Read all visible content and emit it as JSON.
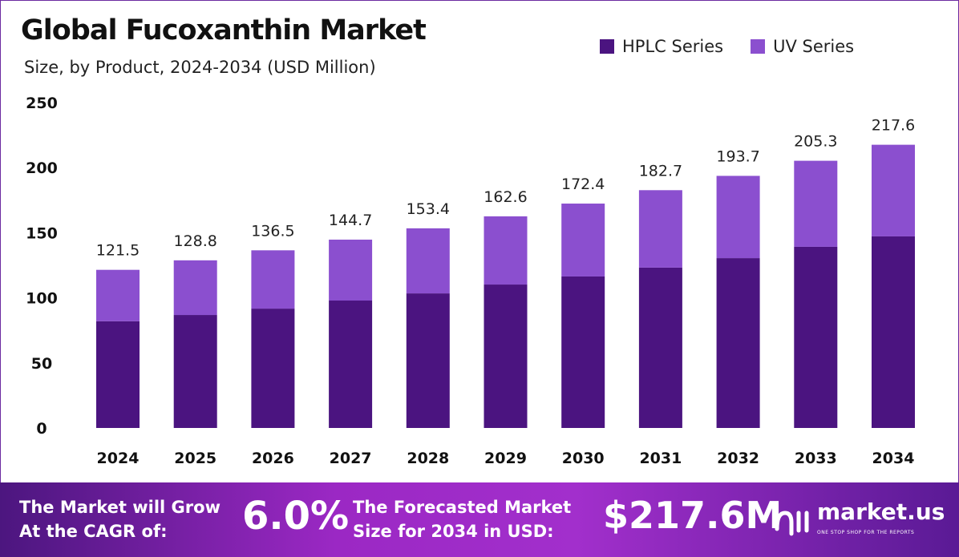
{
  "chart_data": {
    "type": "bar",
    "stacked": true,
    "title": "Global Fucoxanthin Market",
    "subtitle": "Size, by Product, 2024-2034 (USD Million)",
    "categories": [
      "2024",
      "2025",
      "2026",
      "2027",
      "2028",
      "2029",
      "2030",
      "2031",
      "2032",
      "2033",
      "2034"
    ],
    "series": [
      {
        "name": "HPLC Series",
        "color": "#4b1480",
        "values": [
          82.0,
          86.8,
          91.7,
          97.9,
          103.4,
          110.2,
          116.4,
          123.2,
          130.5,
          139.2,
          147.2
        ]
      },
      {
        "name": "UV Series",
        "color": "#8b4fcf",
        "values": [
          39.5,
          42.0,
          44.8,
          46.8,
          50.0,
          52.4,
          56.0,
          59.5,
          63.2,
          66.1,
          70.4
        ]
      }
    ],
    "totals": [
      "121.5",
      "128.8",
      "136.5",
      "144.7",
      "153.4",
      "162.6",
      "172.4",
      "182.7",
      "193.7",
      "205.3",
      "217.6"
    ],
    "ylim": [
      0,
      250
    ],
    "yticks": [
      "0",
      "50",
      "100",
      "150",
      "200",
      "250"
    ],
    "grid": false,
    "legend": "top-right"
  },
  "footer": {
    "cagr_text_1": "The Market will Grow",
    "cagr_text_2": "At the CAGR of:",
    "cagr_value": "6.0%",
    "forecast_text_1": "The Forecasted Market",
    "forecast_text_2": "Size for 2034 in USD:",
    "forecast_value": "$217.6M",
    "logo_name": "market.us",
    "logo_tagline": "ONE STOP SHOP FOR THE REPORTS"
  }
}
